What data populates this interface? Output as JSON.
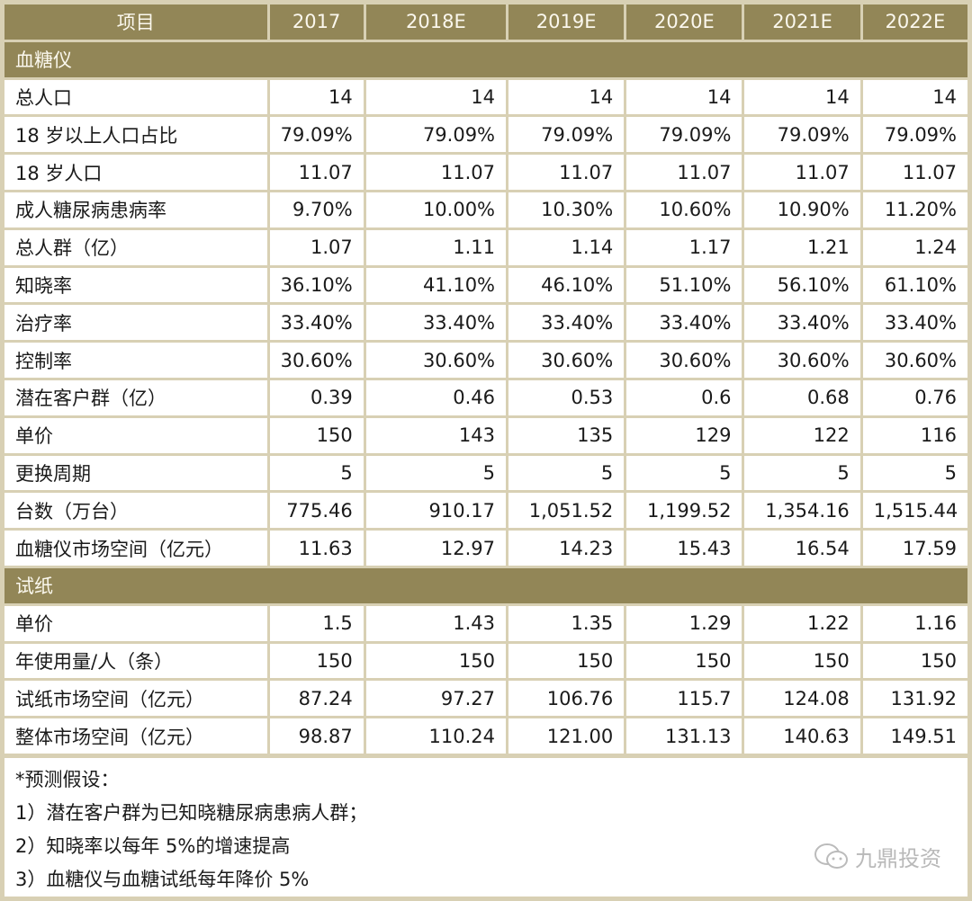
{
  "table": {
    "header": [
      "项目",
      "2017",
      "2018E",
      "2019E",
      "2020E",
      "2021E",
      "2022E"
    ],
    "sections": [
      {
        "title": "血糖仪",
        "rows": [
          {
            "label": "总人口",
            "values": [
              "14",
              "14",
              "14",
              "14",
              "14",
              "14"
            ]
          },
          {
            "label": "18 岁以上人口占比",
            "values": [
              "79.09%",
              "79.09%",
              "79.09%",
              "79.09%",
              "79.09%",
              "79.09%"
            ]
          },
          {
            "label": "18 岁人口",
            "values": [
              "11.07",
              "11.07",
              "11.07",
              "11.07",
              "11.07",
              "11.07"
            ]
          },
          {
            "label": "成人糖尿病患病率",
            "values": [
              "9.70%",
              "10.00%",
              "10.30%",
              "10.60%",
              "10.90%",
              "11.20%"
            ]
          },
          {
            "label": "总人群（亿）",
            "values": [
              "1.07",
              "1.11",
              "1.14",
              "1.17",
              "1.21",
              "1.24"
            ]
          },
          {
            "label": "知晓率",
            "values": [
              "36.10%",
              "41.10%",
              "46.10%",
              "51.10%",
              "56.10%",
              "61.10%"
            ]
          },
          {
            "label": "治疗率",
            "values": [
              "33.40%",
              "33.40%",
              "33.40%",
              "33.40%",
              "33.40%",
              "33.40%"
            ]
          },
          {
            "label": "控制率",
            "values": [
              "30.60%",
              "30.60%",
              "30.60%",
              "30.60%",
              "30.60%",
              "30.60%"
            ]
          },
          {
            "label": "潜在客户群（亿）",
            "values": [
              "0.39",
              "0.46",
              "0.53",
              "0.6",
              "0.68",
              "0.76"
            ]
          },
          {
            "label": "单价",
            "values": [
              "150",
              "143",
              "135",
              "129",
              "122",
              "116"
            ]
          },
          {
            "label": "更换周期",
            "values": [
              "5",
              "5",
              "5",
              "5",
              "5",
              "5"
            ]
          },
          {
            "label": "台数（万台）",
            "values": [
              "775.46",
              "910.17",
              "1,051.52",
              "1,199.52",
              "1,354.16",
              "1,515.44"
            ]
          },
          {
            "label": "血糖仪市场空间（亿元）",
            "values": [
              "11.63",
              "12.97",
              "14.23",
              "15.43",
              "16.54",
              "17.59"
            ]
          }
        ]
      },
      {
        "title": "试纸",
        "rows": [
          {
            "label": "单价",
            "values": [
              "1.5",
              "1.43",
              "1.35",
              "1.29",
              "1.22",
              "1.16"
            ]
          },
          {
            "label": "年使用量/人（条）",
            "values": [
              "150",
              "150",
              "150",
              "150",
              "150",
              "150"
            ]
          },
          {
            "label": "试纸市场空间（亿元）",
            "values": [
              "87.24",
              "97.27",
              "106.76",
              "115.7",
              "124.08",
              "131.92"
            ]
          },
          {
            "label": "整体市场空间（亿元）",
            "values": [
              "98.87",
              "110.24",
              "121.00",
              "131.13",
              "140.63",
              "149.51"
            ]
          }
        ]
      }
    ]
  },
  "notes": [
    "*预测假设：",
    "1）潜在客户群为已知晓糖尿病患病人群；",
    "2）知晓率以每年 5%的增速提高",
    "3）血糖仪与血糖试纸每年降价 5%"
  ],
  "watermark": {
    "icon": "wechat-icon",
    "text": "九鼎投资"
  },
  "colors": {
    "header_bg": "#928657",
    "header_text": "#fbf8ee",
    "border": "#d8d0b4",
    "cell_bg": "#ffffff"
  }
}
